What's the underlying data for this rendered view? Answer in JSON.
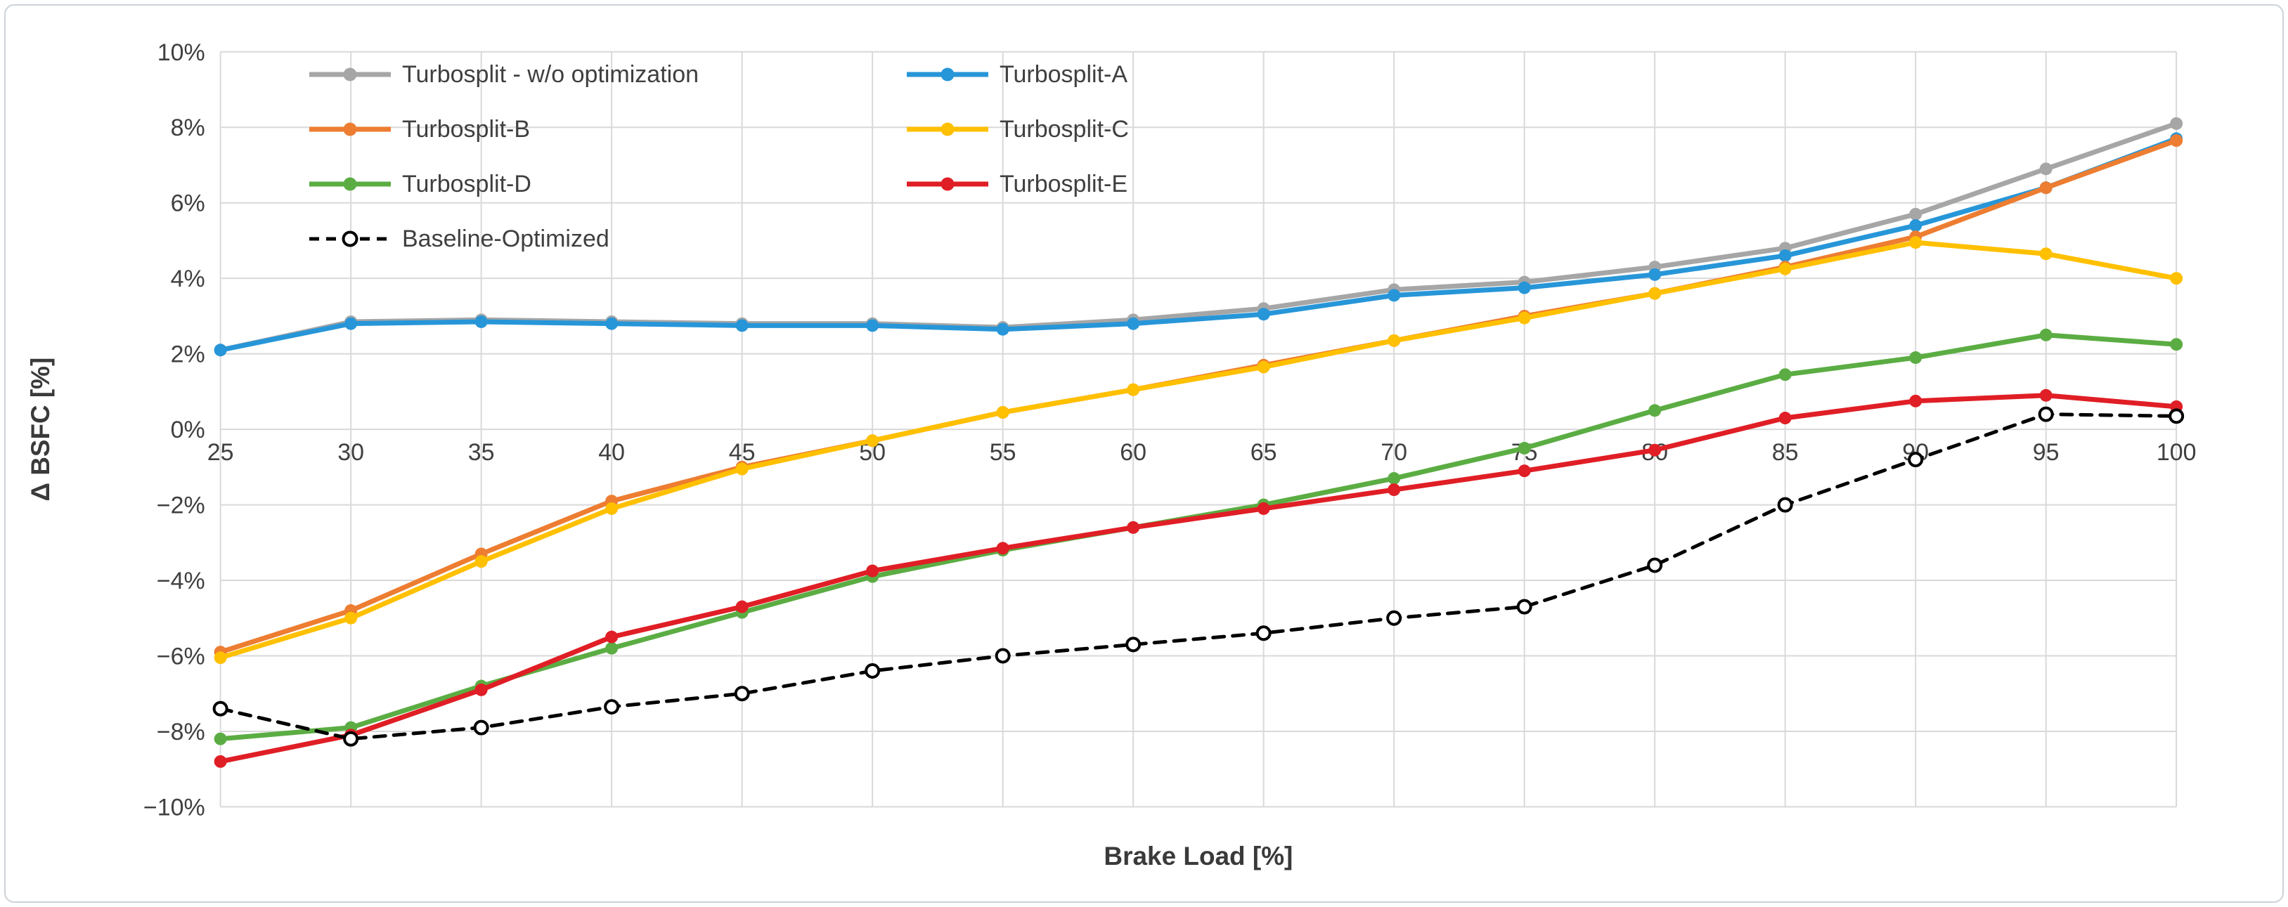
{
  "chart_data": {
    "type": "line",
    "title": "",
    "xlabel": "Brake Load [%]",
    "ylabel": "Δ BSFC [%]",
    "x": [
      25,
      30,
      35,
      40,
      45,
      50,
      55,
      60,
      65,
      70,
      75,
      80,
      85,
      90,
      95,
      100
    ],
    "xtick_labels": [
      "25",
      "30",
      "35",
      "40",
      "45",
      "50",
      "55",
      "60",
      "65",
      "70",
      "75",
      "80",
      "85",
      "90",
      "95",
      "100"
    ],
    "ylim": [
      -10,
      10
    ],
    "yticks": [
      10,
      8,
      6,
      4,
      2,
      0,
      -2,
      -4,
      -6,
      -8,
      -10
    ],
    "ytick_labels": [
      "10%",
      "8%",
      "6%",
      "4%",
      "2%",
      "0%",
      "−2%",
      "−4%",
      "−6%",
      "−8%",
      "−10%"
    ],
    "grid": true,
    "legend_position": "top-left-inside",
    "colors": {
      "grid": "#d9d9d9",
      "tick_text": "#404040",
      "axis_title_text": "#3a3a3a"
    },
    "series": [
      {
        "name": "Turbosplit - w/o optimization",
        "color": "#A6A6A6",
        "dash": null,
        "marker": "filled-circle",
        "values": [
          2.1,
          2.85,
          2.9,
          2.85,
          2.8,
          2.8,
          2.7,
          2.9,
          3.2,
          3.7,
          3.9,
          4.3,
          4.8,
          5.7,
          6.9,
          8.1
        ]
      },
      {
        "name": "Turbosplit-A",
        "color": "#2796D8",
        "dash": null,
        "marker": "filled-circle",
        "values": [
          2.1,
          2.8,
          2.85,
          2.8,
          2.75,
          2.75,
          2.65,
          2.8,
          3.05,
          3.55,
          3.75,
          4.1,
          4.6,
          5.4,
          6.4,
          7.7
        ]
      },
      {
        "name": "Turbosplit-B",
        "color": "#ED7D31",
        "dash": null,
        "marker": "filled-circle",
        "values": [
          -5.9,
          -4.8,
          -3.3,
          -1.9,
          -1.0,
          -0.3,
          0.45,
          1.05,
          1.7,
          2.35,
          3.0,
          3.6,
          4.3,
          5.1,
          6.4,
          7.65
        ]
      },
      {
        "name": "Turbosplit-C",
        "color": "#FFC000",
        "dash": null,
        "marker": "filled-circle",
        "values": [
          -6.05,
          -5.0,
          -3.5,
          -2.1,
          -1.05,
          -0.3,
          0.45,
          1.05,
          1.65,
          2.35,
          2.95,
          3.6,
          4.25,
          4.95,
          4.65,
          4.0
        ]
      },
      {
        "name": "Turbosplit-D",
        "color": "#5BAD43",
        "dash": null,
        "marker": "filled-circle",
        "values": [
          -8.2,
          -7.9,
          -6.8,
          -5.8,
          -4.85,
          -3.9,
          -3.2,
          -2.6,
          -2.0,
          -1.3,
          -0.5,
          0.5,
          1.45,
          1.9,
          2.5,
          2.25
        ]
      },
      {
        "name": "Turbosplit-E",
        "color": "#E01E25",
        "dash": null,
        "marker": "filled-circle",
        "values": [
          -8.8,
          -8.1,
          -6.9,
          -5.5,
          -4.7,
          -3.75,
          -3.15,
          -2.6,
          -2.1,
          -1.6,
          -1.1,
          -0.55,
          0.3,
          0.75,
          0.9,
          0.6
        ]
      },
      {
        "name": "Baseline-Optimized",
        "color": "#000000",
        "dash": "16 12",
        "marker": "open-circle",
        "values": [
          -7.4,
          -8.2,
          -7.9,
          -7.35,
          -7.0,
          -6.4,
          -6.0,
          -5.7,
          -5.4,
          -5.0,
          -4.7,
          -3.6,
          -2.0,
          -0.8,
          0.4,
          0.35
        ]
      }
    ]
  }
}
